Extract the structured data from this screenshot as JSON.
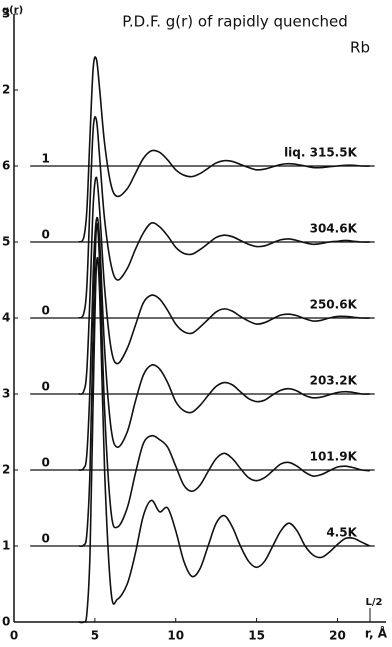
{
  "chart_data": {
    "type": "line",
    "title": "P.D.F. g(r) of rapidly quenched",
    "subtitle": "Rb",
    "y_label": "g(r)",
    "x_label": "r, Å",
    "annotation": "L/2",
    "x": [
      4.0,
      4.3,
      4.5,
      4.7,
      4.9,
      5.1,
      5.3,
      5.6,
      6.0,
      6.4,
      7.0,
      7.5,
      8.0,
      8.5,
      9.0,
      9.5,
      10.0,
      10.5,
      11.0,
      11.5,
      12.0,
      12.5,
      13.0,
      13.5,
      14.0,
      14.5,
      15.0,
      15.5,
      16.0,
      16.5,
      17.0,
      17.5,
      18.0,
      18.5,
      19.0,
      19.5,
      20.0,
      20.5,
      21.0,
      21.5,
      22.0
    ],
    "series": [
      {
        "name": "liq. 315.5K",
        "color": "#111",
        "values": [
          5,
          5.05,
          5.4,
          6.4,
          7.3,
          7.4,
          7.0,
          6.3,
          5.75,
          5.6,
          5.7,
          5.9,
          6.1,
          6.2,
          6.18,
          6.08,
          5.95,
          5.88,
          5.86,
          5.9,
          5.97,
          6.04,
          6.07,
          6.06,
          6.02,
          5.98,
          5.95,
          5.96,
          5.99,
          6.02,
          6.03,
          6.02,
          6.0,
          5.98,
          5.98,
          5.99,
          6.0,
          6.01,
          6.01,
          6.0,
          6.0
        ]
      },
      {
        "name": "304.6K",
        "color": "#111",
        "values": [
          4,
          4.05,
          4.4,
          5.5,
          6.5,
          6.6,
          6.1,
          5.3,
          4.7,
          4.5,
          4.65,
          4.9,
          5.12,
          5.25,
          5.2,
          5.08,
          4.93,
          4.85,
          4.84,
          4.9,
          4.98,
          5.06,
          5.09,
          5.07,
          5.02,
          4.97,
          4.94,
          4.95,
          4.99,
          5.03,
          5.04,
          5.02,
          4.99,
          4.97,
          4.98,
          5.0,
          5.01,
          5.02,
          5.01,
          5.0,
          5.0
        ]
      },
      {
        "name": "250.6K",
        "color": "#111",
        "values": [
          3,
          3.03,
          3.3,
          4.3,
          5.5,
          5.85,
          5.4,
          4.4,
          3.6,
          3.4,
          3.6,
          3.9,
          4.2,
          4.3,
          4.25,
          4.1,
          3.92,
          3.82,
          3.8,
          3.88,
          3.98,
          4.08,
          4.12,
          4.09,
          4.02,
          3.96,
          3.92,
          3.94,
          3.99,
          4.04,
          4.05,
          4.03,
          3.99,
          3.96,
          3.97,
          4.0,
          4.02,
          4.02,
          4.01,
          4.0,
          4.0
        ]
      },
      {
        "name": "203.2K",
        "color": "#111",
        "values": [
          2,
          2.02,
          2.2,
          3.1,
          4.6,
          5.3,
          5.0,
          3.6,
          2.55,
          2.3,
          2.5,
          2.9,
          3.25,
          3.38,
          3.33,
          3.15,
          2.9,
          2.78,
          2.76,
          2.85,
          2.98,
          3.1,
          3.15,
          3.12,
          3.03,
          2.94,
          2.9,
          2.92,
          2.99,
          3.05,
          3.07,
          3.04,
          2.98,
          2.95,
          2.96,
          2.99,
          3.02,
          3.03,
          3.02,
          3.0,
          3.0
        ]
      },
      {
        "name": "101.9K",
        "color": "#111",
        "values": [
          1,
          1.01,
          1.15,
          2.0,
          3.9,
          5.2,
          4.7,
          2.8,
          1.45,
          1.25,
          1.5,
          1.95,
          2.35,
          2.45,
          2.4,
          2.3,
          2.05,
          1.8,
          1.72,
          1.8,
          1.98,
          2.15,
          2.22,
          2.15,
          2.02,
          1.9,
          1.86,
          1.9,
          1.99,
          2.08,
          2.1,
          2.05,
          1.97,
          1.92,
          1.94,
          1.99,
          2.04,
          2.05,
          2.03,
          2.0,
          1.99
        ]
      },
      {
        "name": "4.5K",
        "color": "#111",
        "values": [
          0,
          0,
          0.1,
          0.9,
          3.0,
          4.7,
          4.3,
          2.0,
          0.4,
          0.3,
          0.5,
          0.9,
          1.4,
          1.6,
          1.45,
          1.5,
          1.2,
          0.8,
          0.6,
          0.7,
          1.0,
          1.3,
          1.4,
          1.25,
          1.0,
          0.8,
          0.72,
          0.8,
          1.0,
          1.2,
          1.3,
          1.2,
          1.0,
          0.88,
          0.85,
          0.92,
          1.02,
          1.1,
          1.1,
          1.05,
          1.0
        ]
      }
    ],
    "reference_lines": [
      6,
      5,
      4,
      3,
      2,
      1
    ],
    "reference_labels": [
      "1",
      "0",
      "0",
      "0",
      "0",
      "0"
    ],
    "xlim": [
      0,
      23
    ],
    "ylim": [
      0,
      8
    ],
    "xticks": [
      0,
      5,
      10,
      15,
      20
    ],
    "yticks": [
      0,
      1,
      2,
      3,
      4,
      5,
      6,
      {
        "value": 7,
        "label": "2"
      },
      {
        "value": 8,
        "label": "3"
      }
    ]
  }
}
